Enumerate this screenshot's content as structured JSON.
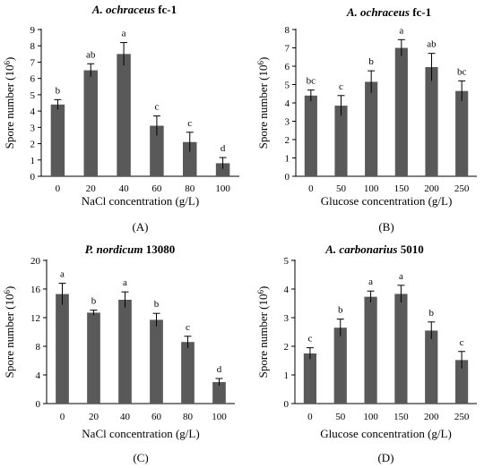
{
  "chart_data": [
    {
      "type": "bar",
      "title_italic": "A. ochraceus",
      "title_rest": " fc-1",
      "panel_label": "(A)",
      "xlabel": "NaCl concentration (g/L)",
      "ylabel": "Spore number (10^6)",
      "categories": [
        "0",
        "20",
        "40",
        "60",
        "80",
        "100"
      ],
      "values": [
        4.4,
        6.5,
        7.5,
        3.1,
        2.1,
        0.8
      ],
      "errors": [
        0.3,
        0.4,
        0.7,
        0.6,
        0.6,
        0.35
      ],
      "letters": [
        "b",
        "ab",
        "a",
        "c",
        "c",
        "d"
      ],
      "ylim": [
        0,
        9
      ],
      "yticks": [
        0,
        1,
        2,
        3,
        4,
        5,
        6,
        7,
        8,
        9
      ],
      "bar_color": "#595959"
    },
    {
      "type": "bar",
      "title_italic": "A. ochraceus",
      "title_rest": " fc-1",
      "panel_label": "(B)",
      "xlabel": "Glucose concentration (g/L)",
      "ylabel": "Spore number (10^6)",
      "categories": [
        "0",
        "50",
        "100",
        "150",
        "200",
        "250"
      ],
      "values": [
        4.4,
        3.85,
        5.15,
        7.0,
        5.95,
        4.65
      ],
      "errors": [
        0.3,
        0.55,
        0.6,
        0.45,
        0.75,
        0.55
      ],
      "letters": [
        "bc",
        "c",
        "b",
        "a",
        "ab",
        "bc"
      ],
      "ylim": [
        0,
        8
      ],
      "yticks": [
        0,
        1,
        2,
        3,
        4,
        5,
        6,
        7,
        8
      ],
      "bar_color": "#595959"
    },
    {
      "type": "bar",
      "title_italic": "P. nordicum",
      "title_rest": " 13080",
      "panel_label": "(C)",
      "xlabel": "NaCl concentration (g/L)",
      "ylabel": "Spore number (10^6)",
      "categories": [
        "0",
        "20",
        "40",
        "60",
        "80",
        "100"
      ],
      "values": [
        15.3,
        12.7,
        14.5,
        11.7,
        8.6,
        3.0
      ],
      "errors": [
        1.5,
        0.35,
        1.1,
        0.9,
        0.8,
        0.5
      ],
      "letters": [
        "a",
        "b",
        "a",
        "b",
        "c",
        "d"
      ],
      "ylim": [
        0,
        20
      ],
      "yticks": [
        0,
        4,
        8,
        12,
        16,
        20
      ],
      "bar_color": "#595959"
    },
    {
      "type": "bar",
      "title_italic": "A. carbonarius",
      "title_rest": " 5010",
      "panel_label": "(D)",
      "xlabel": "Glucose concentration (g/L)",
      "ylabel": "Spore number (10^6)",
      "categories": [
        "0",
        "50",
        "100",
        "150",
        "200",
        "250"
      ],
      "values": [
        1.75,
        2.65,
        3.73,
        3.83,
        2.55,
        1.52
      ],
      "errors": [
        0.2,
        0.3,
        0.2,
        0.3,
        0.3,
        0.3
      ],
      "letters": [
        "c",
        "b",
        "a",
        "a",
        "b",
        "c"
      ],
      "ylim": [
        0,
        5
      ],
      "yticks": [
        0,
        1,
        2,
        3,
        4,
        5
      ],
      "bar_color": "#595959"
    }
  ]
}
